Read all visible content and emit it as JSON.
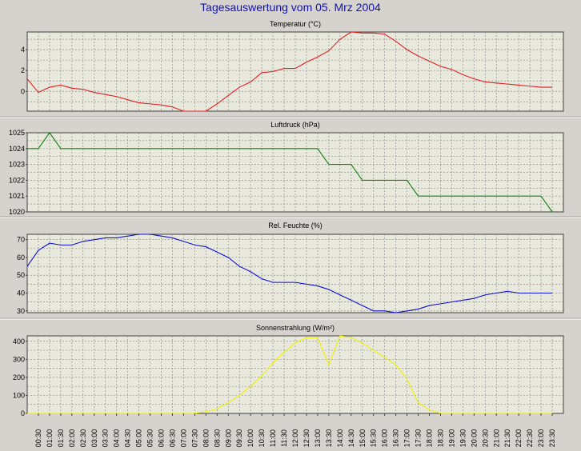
{
  "page_title": "Tagesauswertung vom 05. Mrz 2004",
  "colors": {
    "background": "#d6d3ce",
    "plot_area": "#e8e8dc",
    "grid": "#909090",
    "title": "#1010b0"
  },
  "chart_data": [
    {
      "type": "line",
      "title": "Temperatur (°C)",
      "color": "#e02020",
      "ylim": [
        -1.9,
        5.7
      ],
      "yticks": [
        0,
        2,
        4
      ],
      "x": [
        "00:00",
        "00:30",
        "01:00",
        "01:30",
        "02:00",
        "02:30",
        "03:00",
        "03:30",
        "04:00",
        "04:30",
        "05:00",
        "05:30",
        "06:00",
        "06:30",
        "07:00",
        "07:30",
        "08:00",
        "08:30",
        "09:00",
        "09:30",
        "10:00",
        "10:30",
        "11:00",
        "11:30",
        "12:00",
        "12:30",
        "13:00",
        "13:30",
        "14:00",
        "14:30",
        "15:00",
        "15:30",
        "16:00",
        "16:30",
        "17:00",
        "17:30",
        "18:00",
        "18:30",
        "19:00",
        "19:30",
        "20:00",
        "20:30",
        "21:00",
        "21:30",
        "22:00",
        "22:30",
        "23:00",
        "23:30"
      ],
      "values": [
        1.2,
        -0.1,
        0.4,
        0.6,
        0.3,
        0.2,
        -0.1,
        -0.3,
        -0.5,
        -0.8,
        -1.1,
        -1.2,
        -1.3,
        -1.5,
        -1.9,
        -1.9,
        -1.9,
        -1.2,
        -0.4,
        0.4,
        0.9,
        1.8,
        1.9,
        2.2,
        2.2,
        2.8,
        3.3,
        3.9,
        5.0,
        5.7,
        5.6,
        5.6,
        5.5,
        4.8,
        4.0,
        3.4,
        2.9,
        2.4,
        2.1,
        1.6,
        1.2,
        0.9,
        0.8,
        0.7,
        0.6,
        0.5,
        0.4,
        0.4
      ]
    },
    {
      "type": "line",
      "title": "Luftdruck (hPa)",
      "color": "#108010",
      "ylim": [
        1020,
        1025
      ],
      "yticks": [
        1020,
        1021,
        1022,
        1023,
        1024,
        1025
      ],
      "x": [
        "00:00",
        "00:30",
        "01:00",
        "01:30",
        "02:00",
        "02:30",
        "03:00",
        "03:30",
        "04:00",
        "04:30",
        "05:00",
        "05:30",
        "06:00",
        "06:30",
        "07:00",
        "07:30",
        "08:00",
        "08:30",
        "09:00",
        "09:30",
        "10:00",
        "10:30",
        "11:00",
        "11:30",
        "12:00",
        "12:30",
        "13:00",
        "13:30",
        "14:00",
        "14:30",
        "15:00",
        "15:30",
        "16:00",
        "16:30",
        "17:00",
        "17:30",
        "18:00",
        "18:30",
        "19:00",
        "19:30",
        "20:00",
        "20:30",
        "21:00",
        "21:30",
        "22:00",
        "22:30",
        "23:00",
        "23:30"
      ],
      "values": [
        1024,
        1024,
        1025,
        1024,
        1024,
        1024,
        1024,
        1024,
        1024,
        1024,
        1024,
        1024,
        1024,
        1024,
        1024,
        1024,
        1024,
        1024,
        1024,
        1024,
        1024,
        1024,
        1024,
        1024,
        1024,
        1024,
        1024,
        1023,
        1023,
        1023,
        1022,
        1022,
        1022,
        1022,
        1022,
        1021,
        1021,
        1021,
        1021,
        1021,
        1021,
        1021,
        1021,
        1021,
        1021,
        1021,
        1021,
        1020
      ]
    },
    {
      "type": "line",
      "title": "Rel. Feuchte (%)",
      "color": "#1010d0",
      "ylim": [
        29,
        73
      ],
      "yticks": [
        30,
        40,
        50,
        60,
        70
      ],
      "x": [
        "00:00",
        "00:30",
        "01:00",
        "01:30",
        "02:00",
        "02:30",
        "03:00",
        "03:30",
        "04:00",
        "04:30",
        "05:00",
        "05:30",
        "06:00",
        "06:30",
        "07:00",
        "07:30",
        "08:00",
        "08:30",
        "09:00",
        "09:30",
        "10:00",
        "10:30",
        "11:00",
        "11:30",
        "12:00",
        "12:30",
        "13:00",
        "13:30",
        "14:00",
        "14:30",
        "15:00",
        "15:30",
        "16:00",
        "16:30",
        "17:00",
        "17:30",
        "18:00",
        "18:30",
        "19:00",
        "19:30",
        "20:00",
        "20:30",
        "21:00",
        "21:30",
        "22:00",
        "22:30",
        "23:00",
        "23:30"
      ],
      "values": [
        55,
        64,
        68,
        67,
        67,
        69,
        70,
        71,
        71,
        72,
        73,
        73,
        72,
        71,
        69,
        67,
        66,
        63,
        60,
        55,
        52,
        48,
        46,
        46,
        46,
        45,
        44,
        42,
        39,
        36,
        33,
        30,
        30,
        29,
        30,
        31,
        33,
        34,
        35,
        36,
        37,
        39,
        40,
        41,
        40,
        40,
        40,
        40
      ]
    },
    {
      "type": "line",
      "title": "Sonnenstrahlung (W/m²)",
      "color": "#f0f000",
      "ylim": [
        0,
        430
      ],
      "yticks": [
        0,
        100,
        200,
        300,
        400
      ],
      "x": [
        "00:00",
        "00:30",
        "01:00",
        "01:30",
        "02:00",
        "02:30",
        "03:00",
        "03:30",
        "04:00",
        "04:30",
        "05:00",
        "05:30",
        "06:00",
        "06:30",
        "07:00",
        "07:30",
        "08:00",
        "08:30",
        "09:00",
        "09:30",
        "10:00",
        "10:30",
        "11:00",
        "11:30",
        "12:00",
        "12:30",
        "13:00",
        "13:30",
        "14:00",
        "14:30",
        "15:00",
        "15:30",
        "16:00",
        "16:30",
        "17:00",
        "17:30",
        "18:00",
        "18:30",
        "19:00",
        "19:30",
        "20:00",
        "20:30",
        "21:00",
        "21:30",
        "22:00",
        "22:30",
        "23:00",
        "23:30"
      ],
      "values": [
        0,
        0,
        0,
        0,
        0,
        0,
        0,
        0,
        0,
        0,
        0,
        0,
        0,
        0,
        0,
        0,
        10,
        25,
        60,
        100,
        150,
        210,
        280,
        340,
        390,
        420,
        420,
        270,
        430,
        420,
        390,
        350,
        310,
        270,
        190,
        60,
        20,
        0,
        0,
        0,
        0,
        0,
        0,
        0,
        0,
        0,
        0,
        0
      ]
    }
  ],
  "x_tick_labels": [
    "00:30",
    "01:00",
    "01:30",
    "02:00",
    "02:30",
    "03:00",
    "03:30",
    "04:00",
    "04:30",
    "05:00",
    "05:30",
    "06:00",
    "06:30",
    "07:00",
    "07:30",
    "08:00",
    "08:30",
    "09:00",
    "09:30",
    "10:00",
    "10:30",
    "11:00",
    "11:30",
    "12:00",
    "12:30",
    "13:00",
    "13:30",
    "14:00",
    "14:30",
    "15:00",
    "15:30",
    "16:00",
    "16:30",
    "17:00",
    "17:30",
    "18:00",
    "18:30",
    "19:00",
    "19:30",
    "20:00",
    "20:30",
    "21:00",
    "21:30",
    "22:00",
    "22:30",
    "23:00",
    "23:30"
  ]
}
